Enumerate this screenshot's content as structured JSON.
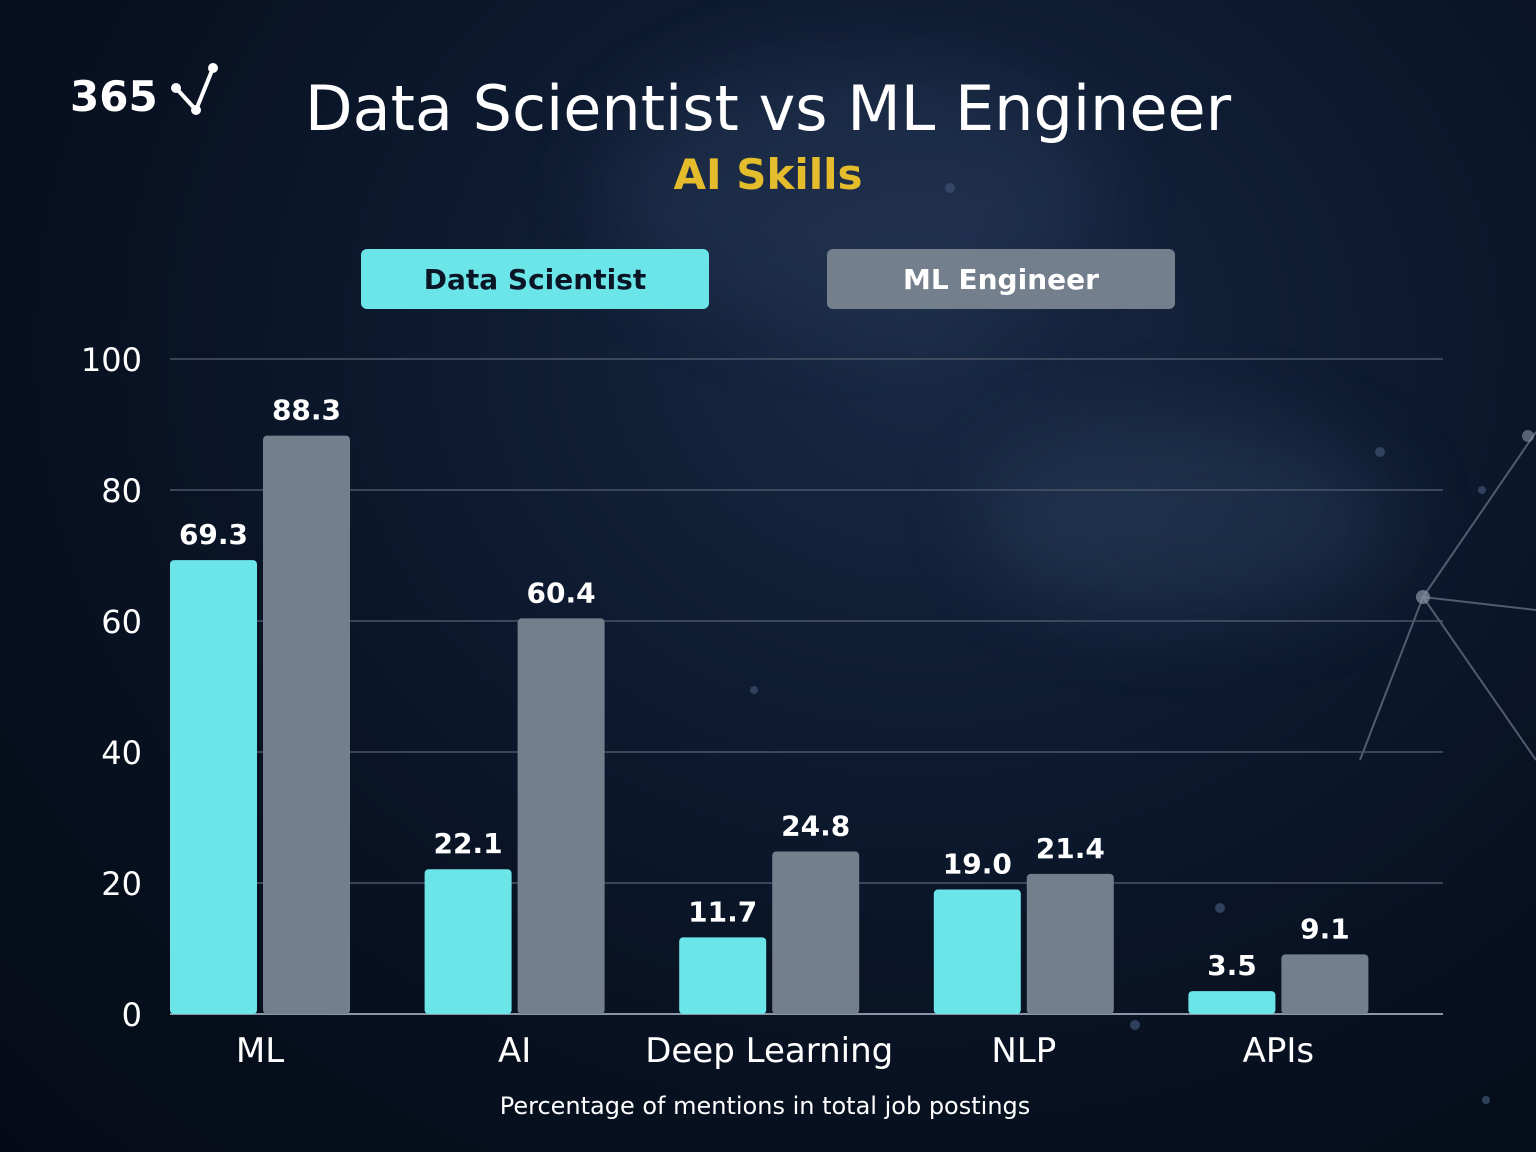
{
  "brand": {
    "logo_text": "365"
  },
  "colors": {
    "data_scientist": "#6ce5e9",
    "ml_engineer": "#747f8d",
    "subtitle": "#e5bd2c",
    "gridline": "#4a5568"
  },
  "chart_data": {
    "type": "bar",
    "title": "Data Scientist vs ML Engineer",
    "subtitle": "AI Skills",
    "xlabel": "Percentage of mentions in total job postings",
    "ylabel": "",
    "ylim": [
      0,
      100
    ],
    "yticks": [
      0,
      20,
      40,
      60,
      80,
      100
    ],
    "grid": true,
    "legend_position": "top",
    "categories": [
      "ML",
      "AI",
      "Deep Learning",
      "NLP",
      "APIs"
    ],
    "series": [
      {
        "name": "Data Scientist",
        "values": [
          69.3,
          22.1,
          11.7,
          19.0,
          3.5
        ]
      },
      {
        "name": "ML Engineer",
        "values": [
          88.3,
          60.4,
          24.8,
          21.4,
          9.1
        ]
      }
    ]
  }
}
